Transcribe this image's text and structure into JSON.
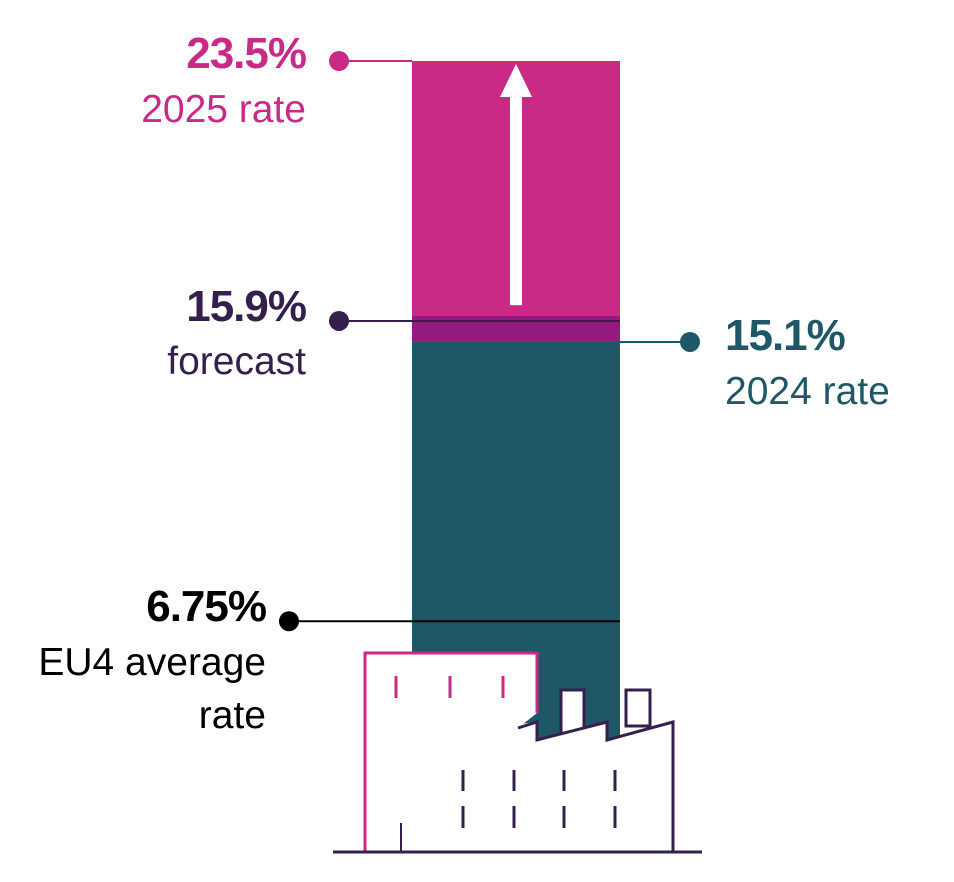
{
  "chart_data": {
    "type": "bar",
    "title": "",
    "annotations": [
      {
        "value": 23.5,
        "value_label": "23.5%",
        "label": "2025 rate",
        "color": "#c82a85"
      },
      {
        "value": 15.9,
        "value_label": "15.9%",
        "label": "forecast",
        "color": "#35204d"
      },
      {
        "value": 15.1,
        "value_label": "15.1%",
        "label": "2024 rate",
        "color": "#1e5766"
      },
      {
        "value": 6.75,
        "value_label": "6.75%",
        "label_lines": [
          "EU4 average",
          "rate"
        ],
        "color": "#000000"
      }
    ],
    "segments": [
      {
        "name": "2024 rate",
        "from": 0,
        "to": 15.1,
        "color": "#1e5766"
      },
      {
        "name": "forecast",
        "from": 15.1,
        "to": 15.9,
        "color": "#931a7e"
      },
      {
        "name": "2025 rate",
        "from": 15.9,
        "to": 23.5,
        "color": "#c82a85"
      }
    ],
    "ylim": [
      0,
      23.5
    ],
    "icons": [
      "up-arrow-icon",
      "factory-icon"
    ]
  }
}
